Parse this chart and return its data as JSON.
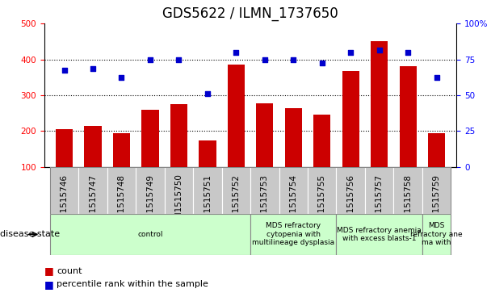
{
  "title": "GDS5622 / ILMN_1737650",
  "samples": [
    "GSM1515746",
    "GSM1515747",
    "GSM1515748",
    "GSM1515749",
    "GSM1515750",
    "GSM1515751",
    "GSM1515752",
    "GSM1515753",
    "GSM1515754",
    "GSM1515755",
    "GSM1515756",
    "GSM1515757",
    "GSM1515758",
    "GSM1515759"
  ],
  "counts": [
    205,
    215,
    195,
    260,
    275,
    175,
    385,
    278,
    265,
    245,
    368,
    450,
    380,
    195
  ],
  "percentiles": [
    370,
    375,
    350,
    400,
    400,
    305,
    420,
    400,
    400,
    390,
    420,
    425,
    420,
    350
  ],
  "ylim_left": [
    100,
    500
  ],
  "ylim_right": [
    0,
    100
  ],
  "yticks_left": [
    100,
    200,
    300,
    400,
    500
  ],
  "yticks_right": [
    0,
    25,
    50,
    75,
    100
  ],
  "bar_color": "#cc0000",
  "dot_color": "#0000cc",
  "bg_color": "#ffffff",
  "sample_bg": "#c8c8c8",
  "disease_color": "#ccffcc",
  "disease_groups": [
    {
      "label": "control",
      "start": 0,
      "end": 7
    },
    {
      "label": "MDS refractory\ncytopenia with\nmultilineage dysplasia",
      "start": 7,
      "end": 10
    },
    {
      "label": "MDS refractory anemia\nwith excess blasts-1",
      "start": 10,
      "end": 13
    },
    {
      "label": "MDS\nrefractory ane\nma with",
      "start": 13,
      "end": 14
    }
  ],
  "disease_state_label": "disease state",
  "legend_count_label": "count",
  "legend_pct_label": "percentile rank within the sample",
  "title_fontsize": 12,
  "tick_fontsize": 7.5,
  "disease_fontsize": 6.5,
  "legend_fontsize": 8
}
